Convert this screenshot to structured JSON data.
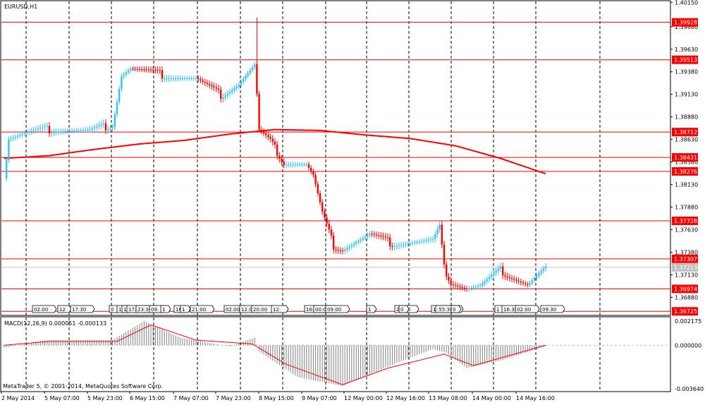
{
  "chart_header": {
    "symbol_timeframe": "EURUSD,H1"
  },
  "macd_header": {
    "label": "MACD(12,26,9) 0.000051 -0.000133"
  },
  "footer": {
    "copyright": "MetaTrader 5, © 2001-2014, MetaQuotes Software Corp."
  },
  "colors": {
    "bull": "#33c3f0",
    "bear": "#ff0000",
    "grid": "#000000",
    "ma": "#ff0000",
    "hline": "#ff0000",
    "histogram": "#808080"
  },
  "chart_data": {
    "type": "candlestick",
    "title": "EURUSD,H1",
    "price_range": [
      1.3668,
      1.4016
    ],
    "price_axis_ticks": [
      "1.40150",
      "1.39880",
      "1.39630",
      "1.39380",
      "1.39130",
      "1.38880",
      "1.38630",
      "1.38380",
      "1.38130",
      "1.37880",
      "1.37630",
      "1.37380",
      "1.37130",
      "1.36880"
    ],
    "time_axis_labels": [
      "2 May 2014",
      "5 May 07:00",
      "5 May 23:00",
      "6 May 15:00",
      "7 May 07:00",
      "7 May 23:00",
      "8 May 15:00",
      "9 May 07:00",
      "12 May 00:00",
      "12 May 16:00",
      "13 May 08:00",
      "14 May 00:00",
      "14 May 16:00"
    ],
    "horizontal_levels": [
      "1.39928",
      "1.39513",
      "1.38712",
      "1.38431",
      "1.38276",
      "1.37728",
      "1.37307",
      "1.36974",
      "1.36725"
    ],
    "current_price": "1.37213",
    "moving_average": [
      {
        "t": 0,
        "p": 1.3842
      },
      {
        "t": 20,
        "p": 1.3845
      },
      {
        "t": 40,
        "p": 1.3852
      },
      {
        "t": 60,
        "p": 1.3858
      },
      {
        "t": 80,
        "p": 1.3862
      },
      {
        "t": 100,
        "p": 1.3869
      },
      {
        "t": 120,
        "p": 1.3874
      },
      {
        "t": 140,
        "p": 1.3873
      },
      {
        "t": 160,
        "p": 1.3868
      },
      {
        "t": 180,
        "p": 1.3864
      },
      {
        "t": 200,
        "p": 1.3856
      },
      {
        "t": 220,
        "p": 1.3842
      },
      {
        "t": 240,
        "p": 1.3825
      }
    ],
    "candle_path": [
      {
        "t": 0,
        "p": 1.382
      },
      {
        "t": 2,
        "p": 1.3865
      },
      {
        "t": 10,
        "p": 1.387
      },
      {
        "t": 22,
        "p": 1.3875
      },
      {
        "t": 38,
        "p": 1.3872
      },
      {
        "t": 48,
        "p": 1.388
      },
      {
        "t": 52,
        "p": 1.3935
      },
      {
        "t": 56,
        "p": 1.3942
      },
      {
        "t": 70,
        "p": 1.3935
      },
      {
        "t": 85,
        "p": 1.393
      },
      {
        "t": 96,
        "p": 1.3912
      },
      {
        "t": 104,
        "p": 1.3925
      },
      {
        "t": 111,
        "p": 1.3945
      },
      {
        "t": 112,
        "p": 1.3912
      },
      {
        "t": 113,
        "p": 1.3872
      },
      {
        "t": 118,
        "p": 1.386
      },
      {
        "t": 124,
        "p": 1.3838
      },
      {
        "t": 134,
        "p": 1.3835
      },
      {
        "t": 137,
        "p": 1.3822
      },
      {
        "t": 141,
        "p": 1.378
      },
      {
        "t": 146,
        "p": 1.3745
      },
      {
        "t": 150,
        "p": 1.3742
      },
      {
        "t": 162,
        "p": 1.3757
      },
      {
        "t": 172,
        "p": 1.3748
      },
      {
        "t": 190,
        "p": 1.375
      },
      {
        "t": 193,
        "p": 1.3765
      },
      {
        "t": 195,
        "p": 1.372
      },
      {
        "t": 198,
        "p": 1.3706
      },
      {
        "t": 205,
        "p": 1.3698
      },
      {
        "t": 211,
        "p": 1.37
      },
      {
        "t": 220,
        "p": 1.3718
      },
      {
        "t": 232,
        "p": 1.3702
      },
      {
        "t": 240,
        "p": 1.372
      }
    ],
    "wick_spikes": [
      {
        "t": 112,
        "high": 1.3998
      }
    ],
    "macd_panel": {
      "title": "MACD(12,26,9) 0.000051 -0.000133",
      "axis_ticks": [
        "0.002175",
        "0.000000",
        "-0.003640"
      ],
      "range": [
        -0.00364,
        0.002175
      ],
      "histogram_path": [
        {
          "t": 0,
          "v": -0.0002
        },
        {
          "t": 18,
          "v": 0.0004
        },
        {
          "t": 48,
          "v": 0.0004
        },
        {
          "t": 62,
          "v": 0.0019
        },
        {
          "t": 78,
          "v": 0.0006
        },
        {
          "t": 100,
          "v": -0.0001
        },
        {
          "t": 111,
          "v": 0.0006
        },
        {
          "t": 113,
          "v": -0.0005
        },
        {
          "t": 130,
          "v": -0.0025
        },
        {
          "t": 150,
          "v": -0.0032
        },
        {
          "t": 168,
          "v": -0.0018
        },
        {
          "t": 190,
          "v": -0.0003
        },
        {
          "t": 196,
          "v": -0.0006
        },
        {
          "t": 205,
          "v": -0.0018
        },
        {
          "t": 220,
          "v": -0.0012
        },
        {
          "t": 240,
          "v": -0.0001
        }
      ],
      "signal_path": [
        {
          "t": 0,
          "v": 0.0
        },
        {
          "t": 20,
          "v": 0.0003
        },
        {
          "t": 50,
          "v": 0.0003
        },
        {
          "t": 65,
          "v": 0.0016
        },
        {
          "t": 85,
          "v": 0.0004
        },
        {
          "t": 110,
          "v": 0.0001
        },
        {
          "t": 125,
          "v": -0.0015
        },
        {
          "t": 150,
          "v": -0.0031
        },
        {
          "t": 170,
          "v": -0.0018
        },
        {
          "t": 195,
          "v": -0.0007
        },
        {
          "t": 208,
          "v": -0.0016
        },
        {
          "t": 228,
          "v": -0.0006
        },
        {
          "t": 240,
          "v": 0.0
        }
      ]
    }
  },
  "event_flags": {
    "items": [
      "02:00",
      "12",
      "17:30",
      "0",
      "11",
      "1",
      "17:00",
      "23:30",
      "09:",
      "1",
      "16",
      "1",
      "21:00",
      "02:00",
      "12:00",
      "20:00",
      "12:",
      "16:00",
      "00:00",
      "09:00",
      "1",
      "20:00",
      "0",
      "10:58",
      ":55:30",
      "0",
      "1",
      "16:30",
      "02:00",
      "09:30"
    ]
  }
}
